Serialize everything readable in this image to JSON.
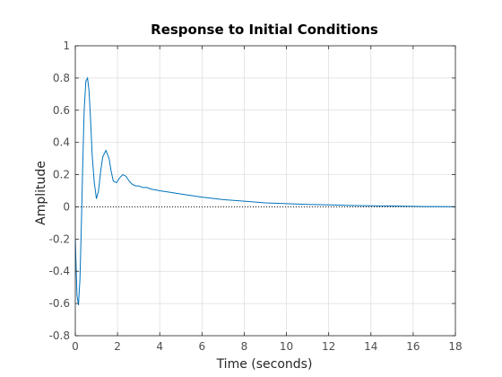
{
  "chart_data": {
    "type": "line",
    "title": "Response to Initial Conditions",
    "xlabel": "Time (seconds)",
    "ylabel": "Amplitude",
    "xlim": [
      0,
      18
    ],
    "ylim": [
      -0.8,
      1
    ],
    "xticks": [
      0,
      2,
      4,
      6,
      8,
      10,
      12,
      14,
      16,
      18
    ],
    "yticks": [
      -0.8,
      -0.6,
      -0.4,
      -0.2,
      0,
      0.2,
      0.4,
      0.6,
      0.8,
      1
    ],
    "xtick_labels": [
      "0",
      "2",
      "4",
      "6",
      "8",
      "10",
      "12",
      "14",
      "16",
      "18"
    ],
    "ytick_labels": [
      "-0.8",
      "-0.6",
      "-0.4",
      "-0.2",
      "0",
      "0.2",
      "0.4",
      "0.6",
      "0.8",
      "1"
    ],
    "grid": true,
    "zero_line": true,
    "colors": {
      "series": "#0072bd",
      "grid": "#dcdcdc",
      "axis": "#262626"
    },
    "series": [
      {
        "x": [
          0,
          0.08,
          0.15,
          0.22,
          0.28,
          0.35,
          0.42,
          0.5,
          0.58,
          0.65,
          0.72,
          0.8,
          0.9,
          1.0,
          1.1,
          1.2,
          1.3,
          1.45,
          1.6,
          1.7,
          1.8,
          1.95,
          2.1,
          2.25,
          2.4,
          2.55,
          2.7,
          2.85,
          3.0,
          3.2,
          3.4,
          3.6,
          3.8,
          4.0,
          4.5,
          5.0,
          5.5,
          6.0,
          7.0,
          8.0,
          9.0,
          10.0,
          11.0,
          12.0,
          13.0,
          14.0,
          15.0,
          16.0,
          16.5,
          17.0,
          18.0
        ],
        "y": [
          -0.2,
          -0.55,
          -0.61,
          -0.45,
          -0.15,
          0.25,
          0.6,
          0.78,
          0.8,
          0.72,
          0.55,
          0.32,
          0.15,
          0.05,
          0.1,
          0.22,
          0.31,
          0.35,
          0.3,
          0.22,
          0.16,
          0.15,
          0.18,
          0.2,
          0.19,
          0.16,
          0.14,
          0.13,
          0.13,
          0.12,
          0.12,
          0.11,
          0.105,
          0.1,
          0.09,
          0.08,
          0.07,
          0.06,
          0.045,
          0.035,
          0.025,
          0.02,
          0.015,
          0.012,
          0.009,
          0.007,
          0.005,
          0.003,
          0.002,
          0.0015,
          0.001
        ]
      }
    ]
  }
}
